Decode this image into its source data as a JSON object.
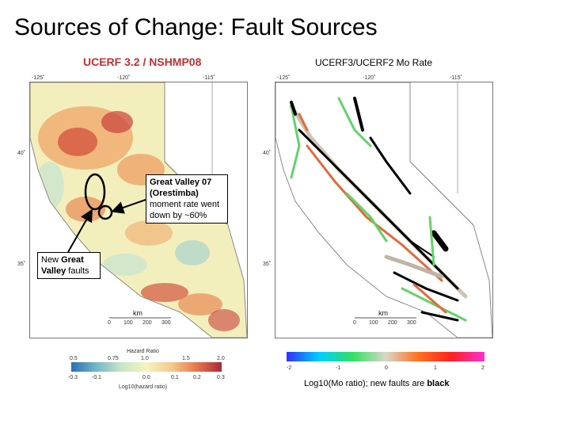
{
  "slide": {
    "title": "Sources of Change: Fault Sources"
  },
  "left_panel": {
    "title": "UCERF 3.2 / NSHMP08",
    "lon_ticks": [
      "-125˚",
      "-120˚",
      "-115˚"
    ],
    "lat_ticks": [
      "40˚",
      "35˚"
    ],
    "scale_unit": "km",
    "scale_ticks": [
      "0",
      "100",
      "200",
      "300"
    ],
    "colorbar": {
      "title": "Hazard Ratio",
      "top_ticks": [
        "0.5",
        "0.75",
        "1.0",
        "1.5",
        "2.0"
      ],
      "bottom_ticks": [
        "-0.3",
        "-0.1",
        "0.0",
        "0.1",
        "0.2",
        "0.3"
      ],
      "label": "Log10(hazard ratio)",
      "colors": [
        "#2c6fb3",
        "#72b7c9",
        "#c9e6c4",
        "#f6f3c2",
        "#f4c98c",
        "#e5774a",
        "#a8283b"
      ]
    }
  },
  "right_panel": {
    "title": "UCERF3/UCERF2 Mo Rate",
    "lon_ticks": [
      "-125˚",
      "-120˚",
      "-115˚"
    ],
    "lat_ticks": [
      "40˚",
      "35˚"
    ],
    "scale_unit": "km",
    "scale_ticks": [
      "0",
      "100",
      "200",
      "300"
    ],
    "colorbar": {
      "ticks": [
        "-2",
        "-1",
        "0",
        "1",
        "2"
      ],
      "colors": [
        "#3030ff",
        "#00d0ff",
        "#30e060",
        "#d8d8c8",
        "#ff7020",
        "#ff2020",
        "#ff30d0"
      ]
    },
    "caption": "Log10(Mo ratio); new faults are",
    "caption_bold": "black"
  },
  "callouts": {
    "great_valley": "Great Valley 07 (Orestimba) moment rate went down by ~60%",
    "great_valley_title": "Great Valley 07 (Orestimba)",
    "great_valley_rest": "moment rate went down by ~60%",
    "new_faults_prefix": "New",
    "new_faults_bold": "Great Valley",
    "new_faults_suffix": "faults"
  }
}
